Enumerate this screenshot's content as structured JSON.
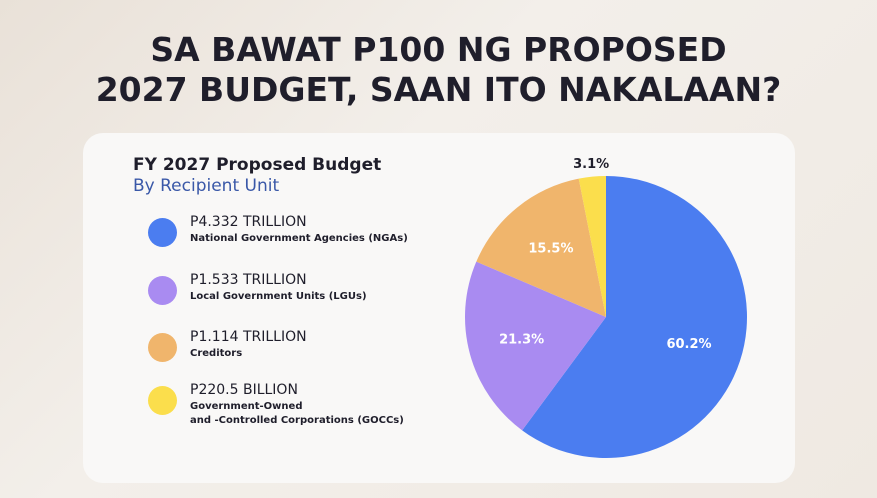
{
  "chart_data": {
    "type": "pie",
    "title": "SA BAWAT P100 NG PROPOSED\n2027 BUDGET, SAAN ITO NAKALAAN?",
    "subtitle": "FY 2027 Proposed Budget",
    "subtitle2": "By Recipient Unit",
    "categories": [
      "National Government Agencies (NGAs)",
      "Local Government Units (LGUs)",
      "Creditors",
      "Government-Owned\nand -Controlled Corporations (GOCCs)"
    ],
    "amounts": [
      "P4.332 TRILLION",
      "P1.533 TRILLION",
      "P1.114 TRILLION",
      "P220.5 BILLION"
    ],
    "values": [
      60.2,
      21.3,
      15.5,
      3.1
    ],
    "value_labels": [
      "60.2%",
      "21.3%",
      "15.5%",
      "3.1%"
    ],
    "colors": [
      "#4b7df0",
      "#a98bf1",
      "#f0b56c",
      "#fbde4c"
    ]
  }
}
